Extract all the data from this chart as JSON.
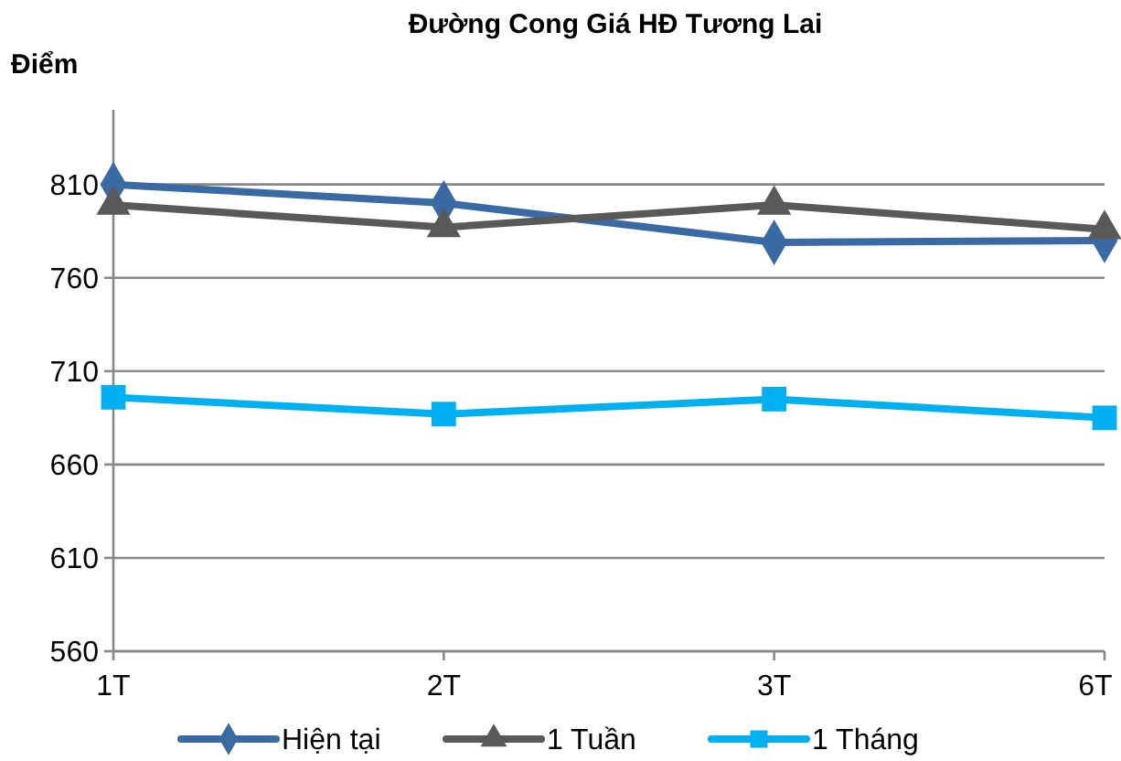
{
  "chart_data": {
    "type": "line",
    "title": "Đường Cong Giá HĐ Tương Lai",
    "ylabel": "Điểm",
    "categories": [
      "1T",
      "2T",
      "3T",
      "6T"
    ],
    "series": [
      {
        "name": "Hiện tại",
        "color": "#3a6aa4",
        "marker": "diamond",
        "values": [
          810,
          800,
          779,
          780
        ]
      },
      {
        "name": "1 Tuần",
        "color": "#595959",
        "marker": "triangle",
        "values": [
          799,
          787,
          799,
          786
        ]
      },
      {
        "name": "1 Tháng",
        "color": "#00b0f0",
        "marker": "square",
        "values": [
          696,
          687,
          695,
          685
        ]
      }
    ],
    "ylim": [
      560,
      850
    ],
    "yticks": [
      560,
      610,
      660,
      710,
      760,
      810
    ],
    "grid": "y",
    "legend": "bottom",
    "line_style": "solid"
  }
}
